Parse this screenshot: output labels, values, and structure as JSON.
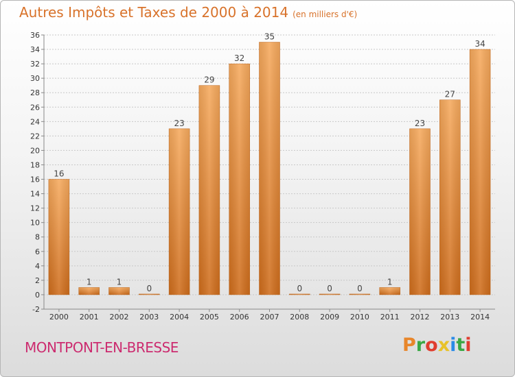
{
  "header": {
    "title": "Autres Impôts et Taxes de 2000 à 2014",
    "unit": "(en milliers d'€)"
  },
  "footer": {
    "commune": "MONTPONT-EN-BRESSE",
    "brand": "Proxiti",
    "brand_colors": [
      "#e8862a",
      "#3aa845",
      "#e03d2f",
      "#e8c22a",
      "#2a8be8",
      "#3aa845",
      "#e03d2f"
    ]
  },
  "colors": {
    "bar_light": "#f6aa5e",
    "bar_dark": "#cf6d1c",
    "axis": "#888888",
    "grid": "#c8c8c8",
    "title": "#d8722a",
    "commune": "#cc2b6f"
  },
  "chart_data": {
    "type": "bar",
    "title": "Autres Impôts et Taxes de 2000 à 2014",
    "categories": [
      "2000",
      "2001",
      "2002",
      "2003",
      "2004",
      "2005",
      "2006",
      "2007",
      "2008",
      "2009",
      "2010",
      "2011",
      "2012",
      "2013",
      "2014"
    ],
    "values": [
      16,
      1,
      1,
      0,
      23,
      29,
      32,
      35,
      0,
      0,
      0,
      1,
      23,
      27,
      34
    ],
    "value_labels": [
      "16",
      "1",
      "1",
      "0",
      "23",
      "29",
      "32",
      "35",
      "0",
      "0",
      "0",
      "1",
      "23",
      "27",
      "34"
    ],
    "yticks": [
      -2,
      0,
      2,
      4,
      6,
      8,
      10,
      12,
      14,
      16,
      18,
      20,
      22,
      24,
      26,
      28,
      30,
      32,
      34,
      36
    ],
    "ylim": [
      -2,
      36
    ],
    "grid": true
  }
}
